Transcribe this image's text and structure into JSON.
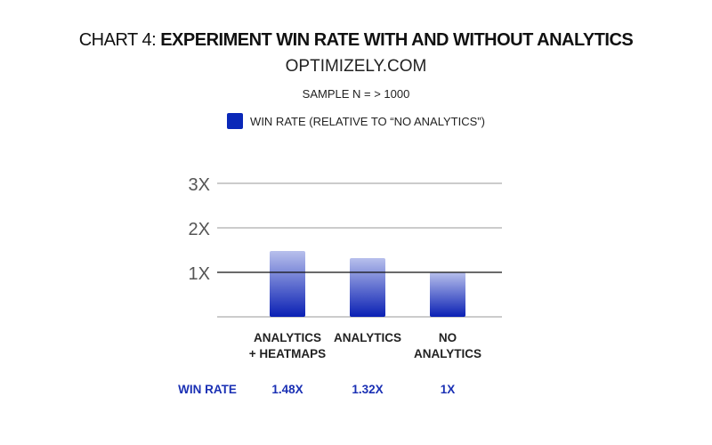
{
  "chart_data": {
    "type": "bar",
    "title_prefix": "CHART 4:",
    "title": "EXPERIMENT WIN RATE WITH AND WITHOUT ANALYTICS",
    "subtitle": "OPTIMIZELY.COM",
    "sample": "SAMPLE N =  > 1000",
    "legend": [
      {
        "label": "WIN RATE (RELATIVE TO “NO ANALYTICS”)",
        "color": "#0a28b8"
      }
    ],
    "categories": [
      [
        "ANALYTICS",
        "+ HEATMAPS"
      ],
      [
        "ANALYTICS",
        ""
      ],
      [
        "NO",
        "ANALYTICS"
      ]
    ],
    "values": [
      1.48,
      1.32,
      1.0
    ],
    "ylim": [
      0,
      3
    ],
    "yticks": [
      {
        "value": 1,
        "label": "1X"
      },
      {
        "value": 2,
        "label": "2X"
      },
      {
        "value": 3,
        "label": "3X"
      }
    ],
    "reference_line": 1,
    "row_label": "WIN RATE",
    "value_labels": [
      "1.48X",
      "1.32X",
      "1X"
    ],
    "colors": {
      "bar_top": "#b8c0ec",
      "bar_bottom": "#0a20b4",
      "value_text": "#1a30b4"
    }
  }
}
